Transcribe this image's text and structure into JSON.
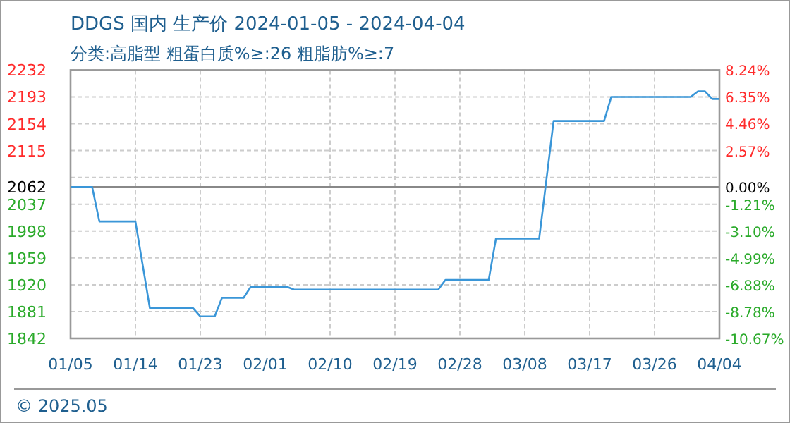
{
  "chart_data": {
    "type": "line",
    "title": "DDGS 国内 生产价 2024-01-05 - 2024-04-04",
    "subtitle": "分类:高脂型 粗蛋白质%≥:26 粗脂肪%≥:7",
    "x": [
      "2024-01-05",
      "2024-01-08",
      "2024-01-09",
      "2024-01-14",
      "2024-01-16",
      "2024-01-22",
      "2024-01-23",
      "2024-01-25",
      "2024-01-26",
      "2024-01-29",
      "2024-01-30",
      "2024-02-04",
      "2024-02-05",
      "2024-02-25",
      "2024-02-26",
      "2024-03-03",
      "2024-03-04",
      "2024-03-10",
      "2024-03-12",
      "2024-03-19",
      "2024-03-20",
      "2024-03-31",
      "2024-04-01",
      "2024-04-02",
      "2024-04-03",
      "2024-04-04"
    ],
    "series": [
      {
        "color": "#3a96d8",
        "values": [
          2062,
          2062,
          2012,
          2012,
          1886,
          1886,
          1874,
          1874,
          1901,
          1901,
          1917,
          1917,
          1913,
          1913,
          1927,
          1927,
          1987,
          1987,
          2158,
          2158,
          2193,
          2193,
          2201,
          2201,
          2190,
          2190
        ]
      }
    ],
    "xlim": [
      "2024-01-05",
      "2024-04-04"
    ],
    "xticks": [
      {
        "value": "2024-01-05",
        "label": "01/05"
      },
      {
        "value": "2024-01-14",
        "label": "01/14"
      },
      {
        "value": "2024-01-23",
        "label": "01/23"
      },
      {
        "value": "2024-02-01",
        "label": "02/01"
      },
      {
        "value": "2024-02-10",
        "label": "02/10"
      },
      {
        "value": "2024-02-19",
        "label": "02/19"
      },
      {
        "value": "2024-02-28",
        "label": "02/28"
      },
      {
        "value": "2024-03-08",
        "label": "03/08"
      },
      {
        "value": "2024-03-17",
        "label": "03/17"
      },
      {
        "value": "2024-03-26",
        "label": "03/26"
      },
      {
        "value": "2024-04-04",
        "label": "04/04"
      }
    ],
    "ylim": [
      1842,
      2232
    ],
    "yticks": [
      2232,
      2193,
      2154,
      2115,
      {
        "value": 2076,
        "label": null
      },
      2062,
      2037,
      1998,
      1959,
      1920,
      1881,
      1842
    ],
    "y2lim": [
      -10.67,
      8.24
    ],
    "y2ticks": [
      {
        "value": 8.24,
        "label": "8.24%"
      },
      {
        "value": 6.35,
        "label": "6.35%"
      },
      {
        "value": 4.46,
        "label": "4.46%"
      },
      {
        "value": 2.57,
        "label": "2.57%"
      },
      {
        "value": 0,
        "label": "0.00%"
      },
      {
        "value": -1.21,
        "label": "-1.21%"
      },
      {
        "value": -3.1,
        "label": "-3.10%"
      },
      {
        "value": -4.99,
        "label": "-4.99%"
      },
      {
        "value": -6.88,
        "label": "-6.88%"
      },
      {
        "value": -8.78,
        "label": "-8.78%"
      },
      {
        "value": -10.67,
        "label": "-10.67%"
      }
    ],
    "ref_lines": [
      {
        "axis": "y",
        "value": 2062,
        "color": "#888888",
        "line_style": "solid"
      }
    ],
    "grid": true,
    "marker": "none",
    "line_style": "solid",
    "annotations": [
      "© 2025.05"
    ]
  }
}
